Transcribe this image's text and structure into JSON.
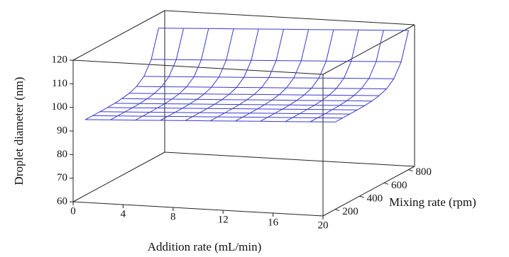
{
  "chart_data": {
    "type": "surface",
    "xlabel": "Addition rate (mL/min)",
    "ylabel": "Mixing rate (rpm)",
    "zlabel": "Droplet diameter (nm)",
    "color": "#3a3acc",
    "x": [
      0,
      2,
      4,
      6,
      8,
      10,
      12,
      14,
      16,
      18,
      20
    ],
    "y": [
      200,
      260,
      320,
      380,
      440,
      500,
      560,
      620,
      680,
      740,
      800
    ],
    "z": [
      [
        92,
        92.5,
        93,
        93.5,
        94,
        94.5,
        95,
        95.5,
        96,
        96.5,
        97
      ],
      [
        92,
        92.5,
        93,
        93.5,
        94,
        94.5,
        95,
        95.5,
        96,
        96.5,
        97
      ],
      [
        92,
        92.5,
        93,
        93.5,
        94,
        94.5,
        95,
        95.5,
        96,
        96.5,
        97
      ],
      [
        92.1,
        92.6,
        93.1,
        93.6,
        94.1,
        94.6,
        95.1,
        95.6,
        96.1,
        96.6,
        97.1
      ],
      [
        92.2,
        92.7,
        93.2,
        93.7,
        94.2,
        94.7,
        95.2,
        95.7,
        96.2,
        96.7,
        97.2
      ],
      [
        92.5,
        93,
        93.5,
        94,
        94.5,
        95,
        95.5,
        96,
        96.5,
        97,
        97.5
      ],
      [
        93.1,
        93.6,
        94.1,
        94.6,
        95.1,
        95.6,
        96.1,
        96.6,
        97.1,
        97.6,
        98.1
      ],
      [
        94.3,
        94.8,
        95.3,
        95.8,
        96.3,
        96.8,
        97.3,
        97.8,
        98.3,
        98.8,
        99.3
      ],
      [
        96.9,
        97.4,
        97.9,
        98.4,
        98.9,
        99.4,
        99.9,
        100.4,
        100.9,
        101.4,
        101.9
      ],
      [
        102.4,
        102.9,
        103.4,
        103.9,
        104.4,
        104.9,
        105.4,
        105.9,
        106.4,
        106.9,
        107.4
      ],
      [
        114,
        114.5,
        115,
        115.5,
        116,
        116.5,
        117,
        117.5,
        118,
        118.5,
        119
      ]
    ],
    "xlim": [
      0,
      20
    ],
    "xticks": [
      0,
      4,
      8,
      12,
      16,
      20
    ],
    "ylim": [
      100,
      850
    ],
    "yticks": [
      200,
      400,
      600,
      800
    ],
    "zlim": [
      60,
      120
    ],
    "zticks": [
      60,
      70,
      80,
      90,
      100,
      110,
      120
    ]
  }
}
